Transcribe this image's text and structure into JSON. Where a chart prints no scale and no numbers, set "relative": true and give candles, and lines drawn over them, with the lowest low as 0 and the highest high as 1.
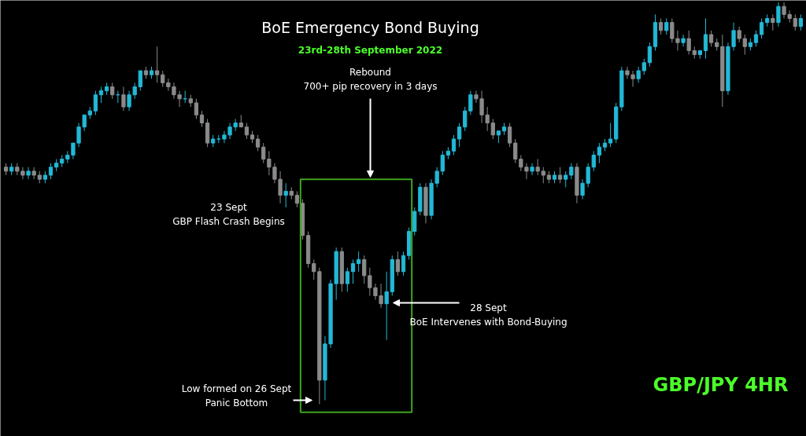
{
  "chart_data": {
    "type": "candlestick",
    "title": "BoE Emergency Bond Buying",
    "subtitle": "23rd-28th September 2022",
    "relative": true,
    "tick_labels": false,
    "categories": [
      null,
      null,
      null,
      null,
      null,
      null,
      null,
      null,
      null,
      null,
      null,
      null,
      null,
      null,
      null,
      null,
      null,
      null,
      null,
      null,
      null,
      null,
      null,
      null,
      null,
      null,
      null,
      null,
      null,
      null,
      null,
      null,
      null,
      null,
      null,
      null,
      null,
      null,
      null,
      null,
      null,
      null,
      null,
      null,
      null,
      null,
      null,
      null,
      null,
      null,
      null,
      null,
      null,
      null,
      null,
      null,
      null,
      null,
      null,
      null,
      null,
      null,
      null,
      null,
      null,
      null,
      null,
      null,
      null,
      null,
      null,
      null,
      null,
      null,
      null,
      null,
      null,
      null,
      null,
      null,
      null,
      null,
      null,
      null,
      null,
      null,
      null,
      null,
      null,
      null,
      null,
      null,
      null,
      null,
      null,
      null,
      null,
      null,
      null,
      null,
      null,
      null,
      null,
      null,
      null,
      null,
      null,
      null,
      null,
      null,
      null,
      null,
      null,
      null,
      null,
      null,
      null,
      null,
      null,
      null,
      null,
      null,
      null,
      null,
      null,
      null,
      null,
      null,
      null,
      null,
      null,
      null,
      null,
      null,
      null,
      null,
      null,
      null,
      null,
      null,
      null,
      null,
      null
    ],
    "ohlc": [
      [
        0.59,
        0.6,
        0.57,
        0.58
      ],
      [
        0.58,
        0.6,
        0.57,
        0.59
      ],
      [
        0.59,
        0.6,
        0.57,
        0.58
      ],
      [
        0.58,
        0.59,
        0.56,
        0.57
      ],
      [
        0.57,
        0.59,
        0.56,
        0.58
      ],
      [
        0.58,
        0.59,
        0.56,
        0.57
      ],
      [
        0.57,
        0.58,
        0.55,
        0.56
      ],
      [
        0.56,
        0.58,
        0.55,
        0.57
      ],
      [
        0.57,
        0.6,
        0.56,
        0.59
      ],
      [
        0.59,
        0.61,
        0.58,
        0.6
      ],
      [
        0.6,
        0.62,
        0.59,
        0.61
      ],
      [
        0.61,
        0.63,
        0.6,
        0.62
      ],
      [
        0.62,
        0.65,
        0.61,
        0.65
      ],
      [
        0.65,
        0.7,
        0.64,
        0.69
      ],
      [
        0.69,
        0.72,
        0.68,
        0.72
      ],
      [
        0.72,
        0.74,
        0.71,
        0.73
      ],
      [
        0.73,
        0.78,
        0.72,
        0.77
      ],
      [
        0.77,
        0.79,
        0.75,
        0.78
      ],
      [
        0.78,
        0.8,
        0.77,
        0.79
      ],
      [
        0.79,
        0.8,
        0.76,
        0.77
      ],
      [
        0.77,
        0.78,
        0.75,
        0.77
      ],
      [
        0.77,
        0.79,
        0.73,
        0.74
      ],
      [
        0.74,
        0.78,
        0.73,
        0.77
      ],
      [
        0.77,
        0.8,
        0.76,
        0.79
      ],
      [
        0.79,
        0.83,
        0.78,
        0.83
      ],
      [
        0.83,
        0.84,
        0.81,
        0.82
      ],
      [
        0.82,
        0.84,
        0.81,
        0.83
      ],
      [
        0.83,
        0.89,
        0.8,
        0.82
      ],
      [
        0.82,
        0.83,
        0.79,
        0.8
      ],
      [
        0.8,
        0.81,
        0.78,
        0.79
      ],
      [
        0.79,
        0.8,
        0.76,
        0.77
      ],
      [
        0.77,
        0.78,
        0.74,
        0.76
      ],
      [
        0.76,
        0.78,
        0.75,
        0.76
      ],
      [
        0.76,
        0.77,
        0.74,
        0.75
      ],
      [
        0.75,
        0.76,
        0.71,
        0.72
      ],
      [
        0.72,
        0.73,
        0.69,
        0.7
      ],
      [
        0.7,
        0.71,
        0.64,
        0.65
      ],
      [
        0.65,
        0.67,
        0.64,
        0.66
      ],
      [
        0.66,
        0.67,
        0.65,
        0.66
      ],
      [
        0.66,
        0.68,
        0.65,
        0.67
      ],
      [
        0.67,
        0.7,
        0.66,
        0.69
      ],
      [
        0.69,
        0.71,
        0.68,
        0.7
      ],
      [
        0.7,
        0.72,
        0.69,
        0.69
      ],
      [
        0.69,
        0.7,
        0.66,
        0.67
      ],
      [
        0.67,
        0.68,
        0.65,
        0.66
      ],
      [
        0.66,
        0.67,
        0.63,
        0.64
      ],
      [
        0.64,
        0.65,
        0.6,
        0.61
      ],
      [
        0.61,
        0.63,
        0.57,
        0.59
      ],
      [
        0.59,
        0.6,
        0.55,
        0.56
      ],
      [
        0.56,
        0.58,
        0.5,
        0.52
      ],
      [
        0.52,
        0.55,
        0.49,
        0.53
      ],
      [
        0.53,
        0.54,
        0.51,
        0.52
      ],
      [
        0.52,
        0.53,
        0.49,
        0.5
      ],
      [
        0.5,
        0.51,
        0.41,
        0.42
      ],
      [
        0.42,
        0.43,
        0.34,
        0.35
      ],
      [
        0.35,
        0.36,
        0.31,
        0.33
      ],
      [
        0.33,
        0.34,
        0.0,
        0.06
      ],
      [
        0.06,
        0.17,
        0.01,
        0.15
      ],
      [
        0.15,
        0.31,
        0.14,
        0.3
      ],
      [
        0.3,
        0.39,
        0.26,
        0.38
      ],
      [
        0.38,
        0.39,
        0.28,
        0.3
      ],
      [
        0.3,
        0.34,
        0.28,
        0.33
      ],
      [
        0.33,
        0.36,
        0.3,
        0.35
      ],
      [
        0.35,
        0.38,
        0.33,
        0.36
      ],
      [
        0.36,
        0.37,
        0.3,
        0.32
      ],
      [
        0.32,
        0.34,
        0.27,
        0.29
      ],
      [
        0.29,
        0.3,
        0.26,
        0.27
      ],
      [
        0.27,
        0.3,
        0.24,
        0.25
      ],
      [
        0.25,
        0.33,
        0.16,
        0.28
      ],
      [
        0.28,
        0.37,
        0.27,
        0.36
      ],
      [
        0.36,
        0.38,
        0.32,
        0.33
      ],
      [
        0.33,
        0.38,
        0.32,
        0.37
      ],
      [
        0.37,
        0.44,
        0.36,
        0.43
      ],
      [
        0.43,
        0.49,
        0.42,
        0.48
      ],
      [
        0.48,
        0.55,
        0.47,
        0.54
      ],
      [
        0.54,
        0.55,
        0.45,
        0.47
      ],
      [
        0.47,
        0.56,
        0.46,
        0.55
      ],
      [
        0.55,
        0.59,
        0.54,
        0.58
      ],
      [
        0.58,
        0.63,
        0.57,
        0.62
      ],
      [
        0.62,
        0.64,
        0.61,
        0.63
      ],
      [
        0.63,
        0.67,
        0.62,
        0.66
      ],
      [
        0.66,
        0.7,
        0.64,
        0.69
      ],
      [
        0.69,
        0.74,
        0.68,
        0.73
      ],
      [
        0.73,
        0.78,
        0.72,
        0.77
      ],
      [
        0.77,
        0.78,
        0.75,
        0.76
      ],
      [
        0.76,
        0.78,
        0.7,
        0.72
      ],
      [
        0.72,
        0.74,
        0.68,
        0.7
      ],
      [
        0.7,
        0.71,
        0.66,
        0.67
      ],
      [
        0.67,
        0.68,
        0.65,
        0.68
      ],
      [
        0.68,
        0.7,
        0.67,
        0.69
      ],
      [
        0.69,
        0.7,
        0.64,
        0.65
      ],
      [
        0.65,
        0.66,
        0.6,
        0.61
      ],
      [
        0.61,
        0.62,
        0.58,
        0.59
      ],
      [
        0.59,
        0.6,
        0.56,
        0.58
      ],
      [
        0.58,
        0.6,
        0.57,
        0.59
      ],
      [
        0.59,
        0.61,
        0.57,
        0.58
      ],
      [
        0.58,
        0.59,
        0.55,
        0.57
      ],
      [
        0.57,
        0.58,
        0.55,
        0.56
      ],
      [
        0.56,
        0.58,
        0.55,
        0.57
      ],
      [
        0.57,
        0.59,
        0.55,
        0.56
      ],
      [
        0.56,
        0.58,
        0.54,
        0.57
      ],
      [
        0.57,
        0.6,
        0.56,
        0.59
      ],
      [
        0.59,
        0.6,
        0.5,
        0.52
      ],
      [
        0.52,
        0.56,
        0.51,
        0.55
      ],
      [
        0.55,
        0.6,
        0.54,
        0.59
      ],
      [
        0.59,
        0.63,
        0.58,
        0.62
      ],
      [
        0.62,
        0.65,
        0.6,
        0.64
      ],
      [
        0.64,
        0.66,
        0.63,
        0.65
      ],
      [
        0.65,
        0.7,
        0.64,
        0.66
      ],
      [
        0.66,
        0.75,
        0.65,
        0.74
      ],
      [
        0.74,
        0.84,
        0.73,
        0.83
      ],
      [
        0.83,
        0.84,
        0.81,
        0.82
      ],
      [
        0.82,
        0.83,
        0.79,
        0.81
      ],
      [
        0.81,
        0.84,
        0.8,
        0.83
      ],
      [
        0.83,
        0.86,
        0.82,
        0.85
      ],
      [
        0.85,
        0.9,
        0.84,
        0.89
      ],
      [
        0.89,
        0.97,
        0.88,
        0.95
      ],
      [
        0.95,
        0.96,
        0.92,
        0.93
      ],
      [
        0.93,
        0.96,
        0.92,
        0.95
      ],
      [
        0.95,
        0.96,
        0.9,
        0.91
      ],
      [
        0.91,
        0.93,
        0.88,
        0.9
      ],
      [
        0.9,
        0.92,
        0.89,
        0.91
      ],
      [
        0.91,
        0.93,
        0.87,
        0.88
      ],
      [
        0.88,
        0.89,
        0.86,
        0.87
      ],
      [
        0.87,
        0.88,
        0.86,
        0.88
      ],
      [
        0.88,
        0.96,
        0.86,
        0.92
      ],
      [
        0.92,
        0.93,
        0.89,
        0.9
      ],
      [
        0.9,
        0.91,
        0.88,
        0.89
      ],
      [
        0.89,
        0.92,
        0.74,
        0.78
      ],
      [
        0.78,
        0.9,
        0.77,
        0.89
      ],
      [
        0.89,
        0.95,
        0.88,
        0.93
      ],
      [
        0.93,
        0.94,
        0.9,
        0.91
      ],
      [
        0.91,
        0.92,
        0.87,
        0.89
      ],
      [
        0.89,
        0.91,
        0.88,
        0.9
      ],
      [
        0.9,
        0.93,
        0.89,
        0.92
      ],
      [
        0.92,
        0.96,
        0.91,
        0.95
      ],
      [
        0.95,
        0.97,
        0.94,
        0.96
      ],
      [
        0.96,
        0.97,
        0.93,
        0.95
      ],
      [
        0.95,
        1.0,
        0.94,
        0.99
      ],
      [
        0.99,
        1.0,
        0.96,
        0.97
      ],
      [
        0.97,
        0.98,
        0.95,
        0.96
      ],
      [
        0.96,
        0.97,
        0.93,
        0.94
      ],
      [
        0.94,
        0.97,
        0.93,
        0.96
      ]
    ],
    "colors": [
      "#8a8a8a",
      "#22b8d6",
      "#8a8a8a",
      "#8a8a8a",
      "#22b8d6",
      "#8a8a8a",
      "#8a8a8a",
      "#22b8d6",
      "#22b8d6",
      "#22b8d6",
      "#22b8d6",
      "#22b8d6",
      "#22b8d6",
      "#22b8d6",
      "#22b8d6",
      "#22b8d6",
      "#22b8d6",
      "#22b8d6",
      "#22b8d6",
      "#8a8a8a",
      "#22b8d6",
      "#8a8a8a",
      "#22b8d6",
      "#22b8d6",
      "#22b8d6",
      "#8a8a8a",
      "#22b8d6",
      "#8a8a8a",
      "#8a8a8a",
      "#8a8a8a",
      "#8a8a8a",
      "#8a8a8a",
      "#22b8d6",
      "#8a8a8a",
      "#8a8a8a",
      "#8a8a8a",
      "#8a8a8a",
      "#22b8d6",
      "#22b8d6",
      "#22b8d6",
      "#22b8d6",
      "#22b8d6",
      "#8a8a8a",
      "#8a8a8a",
      "#8a8a8a",
      "#8a8a8a",
      "#8a8a8a",
      "#8a8a8a",
      "#8a8a8a",
      "#8a8a8a",
      "#22b8d6",
      "#8a8a8a",
      "#8a8a8a",
      "#8a8a8a",
      "#8a8a8a",
      "#8a8a8a",
      "#8a8a8a",
      "#22b8d6",
      "#22b8d6",
      "#22b8d6",
      "#8a8a8a",
      "#22b8d6",
      "#22b8d6",
      "#22b8d6",
      "#8a8a8a",
      "#8a8a8a",
      "#8a8a8a",
      "#8a8a8a",
      "#22b8d6",
      "#22b8d6",
      "#8a8a8a",
      "#22b8d6",
      "#22b8d6",
      "#22b8d6",
      "#22b8d6",
      "#8a8a8a",
      "#22b8d6",
      "#22b8d6",
      "#22b8d6",
      "#22b8d6",
      "#22b8d6",
      "#22b8d6",
      "#22b8d6",
      "#22b8d6",
      "#8a8a8a",
      "#8a8a8a",
      "#8a8a8a",
      "#8a8a8a",
      "#22b8d6",
      "#22b8d6",
      "#8a8a8a",
      "#8a8a8a",
      "#8a8a8a",
      "#8a8a8a",
      "#22b8d6",
      "#8a8a8a",
      "#8a8a8a",
      "#8a8a8a",
      "#22b8d6",
      "#8a8a8a",
      "#22b8d6",
      "#22b8d6",
      "#8a8a8a",
      "#22b8d6",
      "#22b8d6",
      "#22b8d6",
      "#22b8d6",
      "#22b8d6",
      "#22b8d6",
      "#22b8d6",
      "#22b8d6",
      "#8a8a8a",
      "#8a8a8a",
      "#22b8d6",
      "#22b8d6",
      "#22b8d6",
      "#22b8d6",
      "#8a8a8a",
      "#22b8d6",
      "#8a8a8a",
      "#8a8a8a",
      "#22b8d6",
      "#8a8a8a",
      "#8a8a8a",
      "#22b8d6",
      "#22b8d6",
      "#8a8a8a",
      "#8a8a8a",
      "#8a8a8a",
      "#22b8d6",
      "#22b8d6",
      "#8a8a8a",
      "#8a8a8a",
      "#22b8d6",
      "#22b8d6",
      "#22b8d6",
      "#22b8d6",
      "#8a8a8a",
      "#22b8d6",
      "#8a8a8a",
      "#8a8a8a",
      "#8a8a8a",
      "#22b8d6"
    ],
    "annotations": [
      "Rebound\n700+ pip recovery in 3 days",
      "23 Sept\nGBP Flash Crash Begins",
      "28 Sept\nBoE Intervenes with Bond-Buying",
      "Low formed on 26 Sept\nPanic Bottom",
      "GBP/JPY 4HR"
    ]
  }
}
